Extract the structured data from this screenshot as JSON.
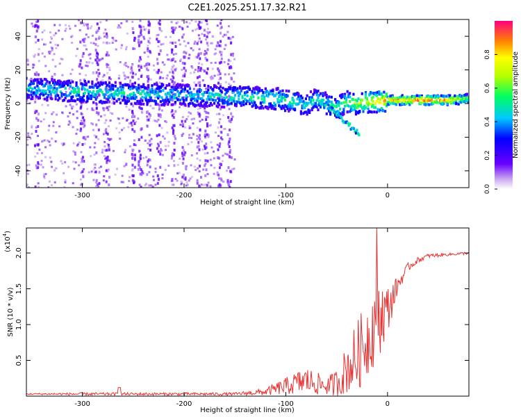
{
  "title": "C2E1.2025.251.17.32.R21",
  "chart_data": [
    {
      "type": "heatmap",
      "xlabel": "Height of straight line (km)",
      "ylabel": "Frequency (Hz)",
      "xlim": [
        -355,
        80
      ],
      "ylim": [
        -50,
        50
      ],
      "xticks": [
        "-300",
        "-200",
        "-100",
        "0"
      ],
      "xtick_values": [
        -300,
        -200,
        -100,
        0
      ],
      "yticks": [
        "-40",
        "-20",
        "0",
        "20",
        "40"
      ],
      "ytick_values": [
        -40,
        -20,
        0,
        20,
        40
      ],
      "colorbar": {
        "label": "Normalized spectral amplitude",
        "range": [
          0,
          1
        ],
        "ticks": [
          "0.0",
          "0.2",
          "0.4",
          "0.6",
          "0.8"
        ],
        "tick_values": [
          0.0,
          0.2,
          0.4,
          0.6,
          0.8
        ]
      },
      "ridge": {
        "x": [
          -355,
          -300,
          -250,
          -200,
          -150,
          -110,
          -90,
          -80,
          -70,
          -60,
          -50,
          -40,
          -30,
          -20,
          -10,
          0,
          20,
          40,
          60,
          80
        ],
        "frequency": [
          9,
          7,
          6,
          5,
          4,
          3,
          1,
          -1,
          3,
          0,
          -3,
          1,
          0,
          1,
          1,
          2,
          2,
          2,
          2,
          3
        ],
        "amplitude": [
          0.45,
          0.5,
          0.5,
          0.45,
          0.5,
          0.55,
          0.5,
          0.45,
          0.55,
          0.5,
          0.55,
          0.6,
          0.7,
          0.75,
          0.8,
          0.85,
          0.9,
          0.92,
          0.88,
          0.6
        ]
      }
    },
    {
      "type": "line",
      "xlabel": "Height of straight line (km)",
      "ylabel": "SNR (10 * v/v)",
      "multiplier": "(x10",
      "multiplier_exp": "4",
      "xlim": [
        -355,
        80
      ],
      "ylim": [
        0,
        2.35
      ],
      "xticks": [
        "-300",
        "-200",
        "-100",
        "0"
      ],
      "xtick_values": [
        -300,
        -200,
        -100,
        0
      ],
      "yticks": [
        "0.5",
        "1.0",
        "1.5",
        "2.0"
      ],
      "ytick_values": [
        0.5,
        1.0,
        1.5,
        2.0
      ],
      "series": [
        {
          "name": "SNR",
          "color": "#e83030",
          "x": [
            -355,
            -300,
            -250,
            -200,
            -150,
            -120,
            -100,
            -80,
            -60,
            -50,
            -40,
            -30,
            -20,
            -10,
            0,
            10,
            20,
            30,
            40,
            60,
            80
          ],
          "values": [
            0.03,
            0.03,
            0.03,
            0.03,
            0.03,
            0.06,
            0.14,
            0.22,
            0.14,
            0.18,
            0.38,
            0.55,
            0.8,
            1.1,
            1.2,
            1.55,
            1.8,
            1.9,
            1.96,
            1.98,
            2.0
          ],
          "spread": [
            0.01,
            0.02,
            0.02,
            0.02,
            0.02,
            0.05,
            0.12,
            0.2,
            0.12,
            0.2,
            0.35,
            0.5,
            0.55,
            0.6,
            0.35,
            0.12,
            0.06,
            0.04,
            0.03,
            0.02,
            0.02
          ]
        }
      ]
    }
  ]
}
